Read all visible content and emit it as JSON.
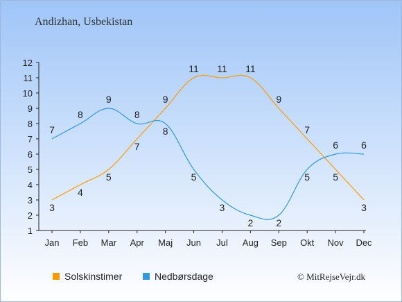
{
  "chart_data": {
    "type": "line",
    "title": "Andizhan, Usbekistan",
    "categories": [
      "Jan",
      "Feb",
      "Mar",
      "Apr",
      "Maj",
      "Jun",
      "Jul",
      "Aug",
      "Sep",
      "Okt",
      "Nov",
      "Dec"
    ],
    "series": [
      {
        "name": "Solskinstimer",
        "color": "#ff9900",
        "values": [
          3,
          4,
          5,
          7,
          9,
          11,
          11,
          11,
          9,
          7,
          5,
          3
        ]
      },
      {
        "name": "Nedbørsdage",
        "color": "#3399dd",
        "values": [
          7,
          8,
          9,
          8,
          8,
          5,
          3,
          2,
          2,
          5,
          6,
          6
        ]
      }
    ],
    "ylim": [
      1,
      12
    ],
    "yticks": [
      1,
      2,
      3,
      4,
      5,
      6,
      7,
      8,
      9,
      10,
      11,
      12
    ],
    "xlabel": "",
    "ylabel": "",
    "grid": false,
    "legend_position": "bottom-left"
  },
  "credit": "© MitRejseVejr.dk",
  "colors": {
    "background_top": "#9fc5f8",
    "background_bottom": "#ffffff"
  }
}
